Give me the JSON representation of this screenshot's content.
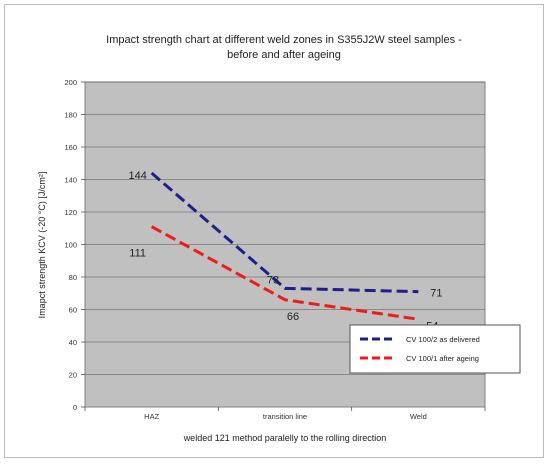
{
  "chart_data": {
    "type": "line",
    "title_lines": [
      "Impact strength chart at different weld  zones in S355J2W steel samples -",
      "before and after ageing"
    ],
    "xlabel": "welded 121 method paralelly to the rolling direction",
    "ylabel": "Imapct strength KCV (-20 °C)  [J/cm²]",
    "categories": [
      "HAZ",
      "transition line",
      "Weld"
    ],
    "ylim": [
      0,
      200
    ],
    "yticks": [
      0,
      20,
      40,
      60,
      80,
      100,
      120,
      140,
      160,
      180,
      200
    ],
    "grid": true,
    "legend_position": "lower-right",
    "plot_background": "#c0c0c0",
    "series": [
      {
        "name": "CV 100/2 as delivered",
        "values": [
          144,
          73,
          71
        ],
        "data_labels": [
          "144",
          "73",
          "71"
        ],
        "color": "#1f1f8a",
        "dash": "dashed"
      },
      {
        "name": "CV 100/1 after ageing",
        "values": [
          111,
          66,
          54
        ],
        "data_labels": [
          "111",
          "66",
          "54"
        ],
        "color": "#ee1c1c",
        "dash": "dashed"
      }
    ]
  }
}
